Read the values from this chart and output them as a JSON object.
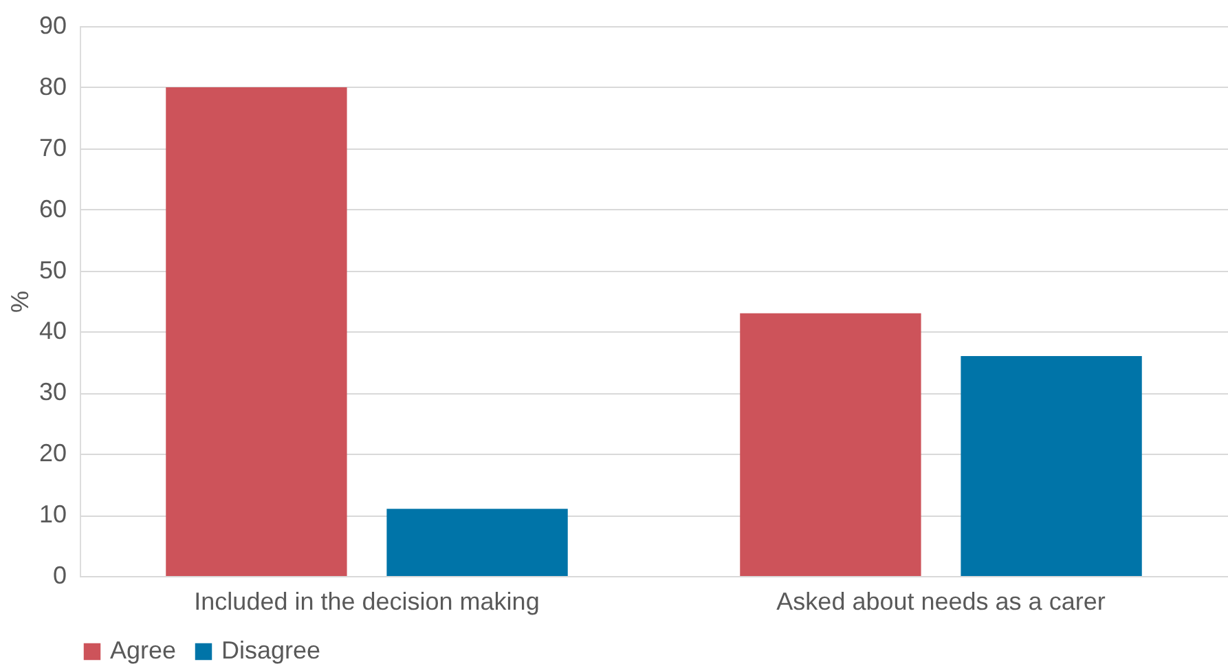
{
  "chart_data": {
    "type": "bar",
    "ylabel": "%",
    "categories": [
      "Included in the decision making",
      "Asked about needs as a carer"
    ],
    "series": [
      {
        "name": "Agree",
        "color": "#cd535a",
        "values": [
          80,
          43
        ]
      },
      {
        "name": "Disagree",
        "color": "#0074a8",
        "values": [
          11,
          36
        ]
      }
    ],
    "ylim": [
      0,
      90
    ],
    "yticks": [
      0,
      10,
      20,
      30,
      40,
      50,
      60,
      70,
      80,
      90
    ],
    "grid": "y",
    "legend": "bottom"
  }
}
